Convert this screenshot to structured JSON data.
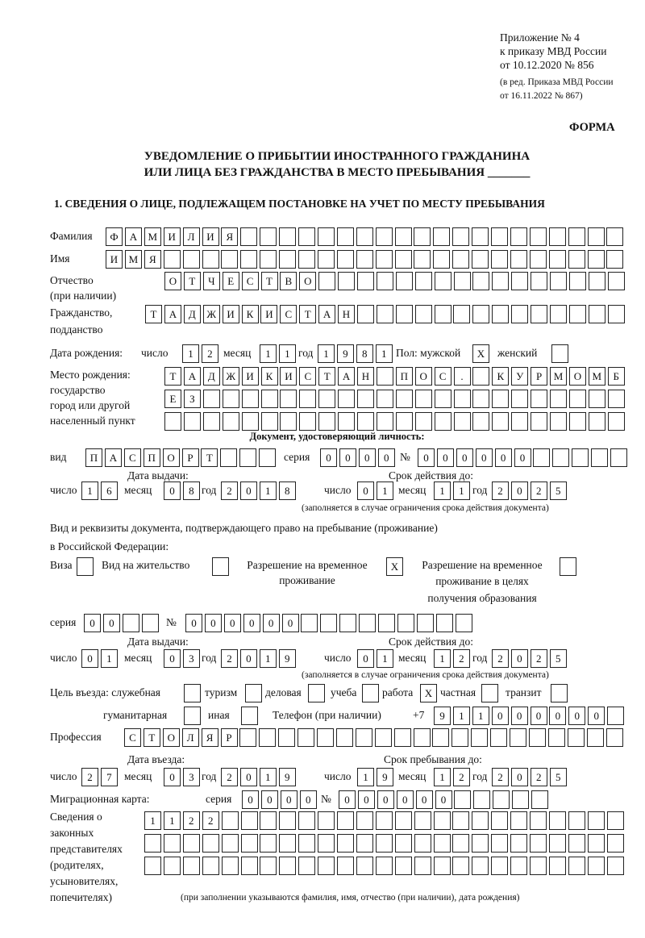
{
  "header": {
    "appendix": "Приложение № 4",
    "order": "к приказу МВД России",
    "date": "от 10.12.2020 № 856",
    "edition1": "(в ред. Приказа МВД России",
    "edition2": "от 16.11.2022 № 867)",
    "form_label": "ФОРМА",
    "title1": "УВЕДОМЛЕНИЕ О ПРИБЫТИИ ИНОСТРАННОГО ГРАЖДАНИНА",
    "title2": "ИЛИ ЛИЦА БЕЗ ГРАЖДАНСТВА В МЕСТО ПРЕБЫВАНИЯ _______",
    "section1": "1. СВЕДЕНИЯ О ЛИЦЕ, ПОДЛЕЖАЩЕМ ПОСТАНОВКЕ НА УЧЕТ ПО МЕСТУ ПРЕБЫВАНИЯ"
  },
  "labels": {
    "surname": "Фамилия",
    "name": "Имя",
    "patronymic": "Отчество",
    "patronymic2": "(при наличии)",
    "citizenship": "Гражданство,",
    "citizenship2": "подданство",
    "birth_date": "Дата рождения:",
    "day": "число",
    "month": "месяц",
    "year": "год",
    "sex": "Пол: мужской",
    "female": "женский",
    "birthplace1": "Место рождения:",
    "birthplace2": "государство",
    "birthplace3": "город или другой",
    "birthplace4": "населенный пункт",
    "id_doc": "Документ, удостоверяющий личность:",
    "kind": "вид",
    "series": "серия",
    "number": "№",
    "issue_date": "Дата выдачи:",
    "valid_until": "Срок действия до:",
    "validity_note": "(заполняется в случае ограничения срока действия документа)",
    "right_doc1": "Вид и реквизиты документа, подтверждающего право на пребывание (проживание)",
    "right_doc2": "в Российской Федерации:",
    "visa": "Виза",
    "residence": "Вид на жительство",
    "trp1": "Разрешение на временное",
    "trp2": "проживание",
    "trpe1": "Разрешение на временное",
    "trpe2": "проживание в целях",
    "trpe3": "получения образования",
    "purpose": "Цель въезда: служебная",
    "tourism": "туризм",
    "business": "деловая",
    "study": "учеба",
    "work": "работа",
    "private": "частная",
    "transit": "транзит",
    "humanitarian": "гуманитарная",
    "other": "иная",
    "phone": "Телефон (при наличии)",
    "phone_prefix": "+7",
    "profession": "Профессия",
    "entry_date": "Дата въезда:",
    "stay_until": "Срок пребывания до:",
    "migration_card": "Миграционная карта:",
    "rep1": "Сведения о",
    "rep2": "законных",
    "rep3": "представителях",
    "rep4": "(родителях,",
    "rep5": "усыновителях,",
    "rep6": "попечителях)",
    "rep_note": "(при заполнении указываются фамилия, имя, отчество (при наличии), дата рождения)"
  },
  "person": {
    "surname": "ФАМИЛИЯ",
    "name": "ИМЯ",
    "patronymic": "ОТЧЕСТВО",
    "citizenship": "ТАДЖИКИСТАН",
    "birth_day": "12",
    "birth_month": "11",
    "birth_year": "1981",
    "sex_male": "X",
    "sex_female": "",
    "birthplace1": "ТАДЖИКИСТАН ПОС. КУРМОМБ",
    "birthplace2": "ЕЗ",
    "birthplace3": ""
  },
  "id_document": {
    "kind": "ПАСПОРТ",
    "series": "0000",
    "number": "000000",
    "issue_day": "16",
    "issue_month": "08",
    "issue_year": "2018",
    "valid_day": "01",
    "valid_month": "11",
    "valid_year": "2025"
  },
  "right_document": {
    "visa": "",
    "residence": "",
    "trp": "X",
    "trp_education": "",
    "series": "00",
    "number": "000000",
    "issue_day": "01",
    "issue_month": "03",
    "issue_year": "2019",
    "valid_day": "01",
    "valid_month": "12",
    "valid_year": "2025"
  },
  "purpose": {
    "official": "",
    "tourism": "",
    "business": "",
    "study": "",
    "work": "X",
    "private": "",
    "transit": "",
    "humanitarian": "",
    "other": ""
  },
  "phone": "911000000",
  "profession": "СТОЛЯР",
  "entry": {
    "day": "27",
    "month": "03",
    "year": "2019",
    "stay_day": "19",
    "stay_month": "12",
    "stay_year": "2025"
  },
  "migration_card": {
    "series": "0000",
    "number": "000000"
  },
  "representatives": {
    "line1": "1122",
    "line2": "",
    "line3": ""
  }
}
